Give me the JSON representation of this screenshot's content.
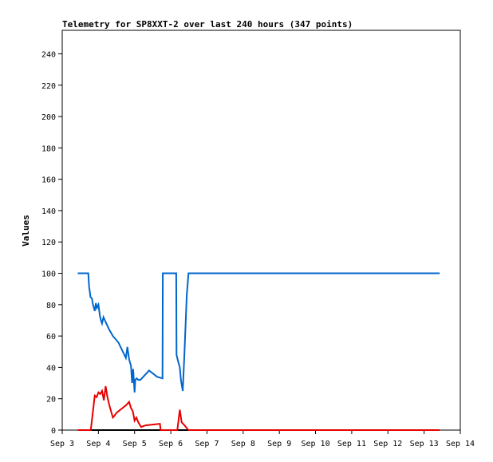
{
  "chart_data": {
    "type": "line",
    "title": "Telemetry for SP8XXT-2 over last 240 hours (347 points)",
    "xlabel": "",
    "ylabel": "Values",
    "grid": false,
    "legend": "none",
    "ylim": [
      0,
      255
    ],
    "xlim": [
      0,
      11
    ],
    "x_tick_labels": [
      "Sep 3",
      "Sep 4",
      "Sep 5",
      "Sep 6",
      "Sep 7",
      "Sep 8",
      "Sep 9",
      "Sep 10",
      "Sep 11",
      "Sep 12",
      "Sep 13",
      "Sep 14"
    ],
    "y_ticks": [
      0,
      20,
      40,
      60,
      80,
      100,
      120,
      140,
      160,
      180,
      200,
      220,
      240
    ],
    "series": [
      {
        "color": "#0066cc",
        "x": [
          0.43,
          0.72,
          0.74,
          0.78,
          0.82,
          0.85,
          0.9,
          0.93,
          0.96,
          1.0,
          1.04,
          1.07,
          1.1,
          1.14,
          1.18,
          1.22,
          1.3,
          1.4,
          1.55,
          1.76,
          1.8,
          1.85,
          1.9,
          1.93,
          1.96,
          2.0,
          2.02,
          2.06,
          2.1,
          2.16,
          2.4,
          2.62,
          2.77,
          2.78,
          3.15,
          3.16,
          3.2,
          3.25,
          3.28,
          3.33,
          3.38,
          3.44,
          3.49,
          10.43
        ],
        "y": [
          100,
          100,
          92,
          85,
          84,
          80,
          76,
          81,
          78,
          80,
          73,
          70,
          68,
          72,
          70,
          68,
          64,
          60,
          56,
          46,
          53,
          45,
          41,
          30,
          39,
          24,
          32,
          33,
          32,
          32,
          38,
          34,
          33,
          100,
          100,
          48,
          44,
          40,
          32,
          25,
          50,
          86,
          100,
          100
        ]
      },
      {
        "color": "#e60000",
        "x": [
          0.43,
          0.79,
          0.9,
          0.95,
          1.0,
          1.05,
          1.1,
          1.15,
          1.2,
          1.25,
          1.3,
          1.35,
          1.4,
          1.44,
          1.5,
          1.77,
          1.85,
          1.9,
          1.95,
          2.0,
          2.05,
          2.1,
          2.18,
          2.3,
          2.7,
          2.72,
          3.18,
          3.25,
          3.3,
          3.38,
          3.49,
          10.43
        ],
        "y": [
          0,
          0,
          22,
          21,
          24,
          23,
          25,
          19,
          28,
          21,
          16,
          12,
          8,
          9,
          11,
          16,
          18,
          14,
          12,
          6,
          8,
          5,
          2,
          3,
          4,
          0,
          0,
          13,
          5,
          3,
          0,
          0
        ]
      },
      {
        "color": "#000000",
        "x": [
          0.43,
          10.43
        ],
        "y": [
          0,
          0
        ]
      }
    ]
  }
}
